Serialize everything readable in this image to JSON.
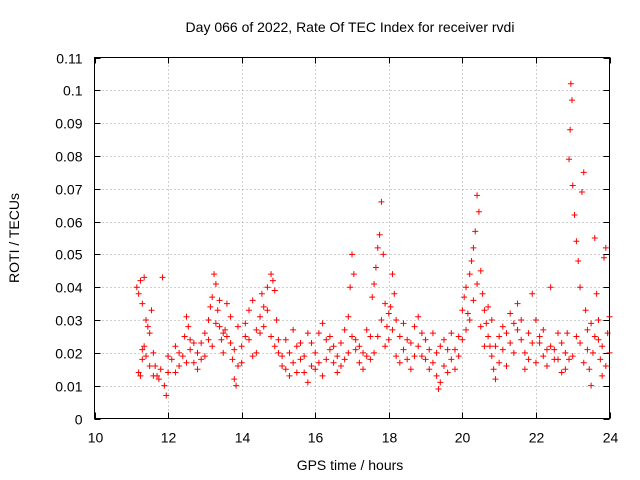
{
  "chart_data": {
    "type": "scatter",
    "title": "Day 066 of 2022, Rate Of TEC Index for receiver rvdi",
    "xlabel": "GPS time / hours",
    "ylabel": "ROTI / TECUs",
    "xlim": [
      10,
      24
    ],
    "ylim": [
      0,
      0.11
    ],
    "xticks": [
      10,
      12,
      14,
      16,
      18,
      20,
      22,
      24
    ],
    "yticks": [
      0,
      0.01,
      0.02,
      0.03,
      0.04,
      0.05,
      0.06,
      0.07,
      0.08,
      0.09,
      0.1,
      0.11
    ],
    "xtick_labels": [
      "10",
      "12",
      "14",
      "16",
      "18",
      "20",
      "22",
      "24"
    ],
    "ytick_labels": [
      "0",
      "0.01",
      "0.02",
      "0.03",
      "0.04",
      "0.05",
      "0.06",
      "0.07",
      "0.08",
      "0.09",
      "0.1",
      "0.11"
    ],
    "grid": true,
    "marker": "+",
    "marker_color": "#ff0000",
    "series": [
      {
        "name": "ROTI",
        "points": [
          [
            11.15,
            0.04
          ],
          [
            11.2,
            0.038
          ],
          [
            11.25,
            0.042
          ],
          [
            11.3,
            0.035
          ],
          [
            11.35,
            0.043
          ],
          [
            11.2,
            0.014
          ],
          [
            11.25,
            0.013
          ],
          [
            11.3,
            0.018
          ],
          [
            11.35,
            0.022
          ],
          [
            11.4,
            0.03
          ],
          [
            11.45,
            0.028
          ],
          [
            11.5,
            0.026
          ],
          [
            11.55,
            0.033
          ],
          [
            11.6,
            0.02
          ],
          [
            11.65,
            0.016
          ],
          [
            11.7,
            0.013
          ],
          [
            11.75,
            0.012
          ],
          [
            11.8,
            0.015
          ],
          [
            11.85,
            0.043
          ],
          [
            11.9,
            0.01
          ],
          [
            11.95,
            0.007
          ],
          [
            12.0,
            0.014
          ],
          [
            12.1,
            0.018
          ],
          [
            12.2,
            0.022
          ],
          [
            12.3,
            0.016
          ],
          [
            12.4,
            0.019
          ],
          [
            12.45,
            0.025
          ],
          [
            12.5,
            0.031
          ],
          [
            12.55,
            0.028
          ],
          [
            12.6,
            0.021
          ],
          [
            12.7,
            0.017
          ],
          [
            12.8,
            0.02
          ],
          [
            12.9,
            0.023
          ],
          [
            13.0,
            0.026
          ],
          [
            13.1,
            0.03
          ],
          [
            13.15,
            0.034
          ],
          [
            13.2,
            0.037
          ],
          [
            13.25,
            0.044
          ],
          [
            13.3,
            0.041
          ],
          [
            13.35,
            0.033
          ],
          [
            13.4,
            0.028
          ],
          [
            13.45,
            0.024
          ],
          [
            13.5,
            0.02
          ],
          [
            13.55,
            0.027
          ],
          [
            13.6,
            0.035
          ],
          [
            13.7,
            0.031
          ],
          [
            13.75,
            0.018
          ],
          [
            13.8,
            0.012
          ],
          [
            13.85,
            0.01
          ],
          [
            13.9,
            0.016
          ],
          [
            14.0,
            0.022
          ],
          [
            14.1,
            0.029
          ],
          [
            14.2,
            0.033
          ],
          [
            14.3,
            0.036
          ],
          [
            14.4,
            0.027
          ],
          [
            14.5,
            0.031
          ],
          [
            14.55,
            0.038
          ],
          [
            14.6,
            0.034
          ],
          [
            14.7,
            0.04
          ],
          [
            14.8,
            0.044
          ],
          [
            14.85,
            0.042
          ],
          [
            14.9,
            0.039
          ],
          [
            14.95,
            0.03
          ],
          [
            15.0,
            0.024
          ],
          [
            15.1,
            0.019
          ],
          [
            15.2,
            0.015
          ],
          [
            15.3,
            0.013
          ],
          [
            15.4,
            0.017
          ],
          [
            15.5,
            0.022
          ],
          [
            15.6,
            0.018
          ],
          [
            15.7,
            0.014
          ],
          [
            15.8,
            0.011
          ],
          [
            15.9,
            0.016
          ],
          [
            16.0,
            0.02
          ],
          [
            16.1,
            0.026
          ],
          [
            16.2,
            0.029
          ],
          [
            16.3,
            0.024
          ],
          [
            16.4,
            0.021
          ],
          [
            16.5,
            0.017
          ],
          [
            16.6,
            0.019
          ],
          [
            16.7,
            0.023
          ],
          [
            16.8,
            0.027
          ],
          [
            16.9,
            0.031
          ],
          [
            16.95,
            0.04
          ],
          [
            17.0,
            0.05
          ],
          [
            17.05,
            0.044
          ],
          [
            17.1,
            0.021
          ],
          [
            17.2,
            0.017
          ],
          [
            17.3,
            0.015
          ],
          [
            17.4,
            0.019
          ],
          [
            17.5,
            0.025
          ],
          [
            17.55,
            0.037
          ],
          [
            17.6,
            0.041
          ],
          [
            17.65,
            0.046
          ],
          [
            17.7,
            0.052
          ],
          [
            17.75,
            0.056
          ],
          [
            17.8,
            0.066
          ],
          [
            17.85,
            0.05
          ],
          [
            17.9,
            0.035
          ],
          [
            17.95,
            0.028
          ],
          [
            18.0,
            0.024
          ],
          [
            18.05,
            0.034
          ],
          [
            18.1,
            0.044
          ],
          [
            18.15,
            0.038
          ],
          [
            18.2,
            0.03
          ],
          [
            18.3,
            0.025
          ],
          [
            18.4,
            0.021
          ],
          [
            18.5,
            0.018
          ],
          [
            18.6,
            0.023
          ],
          [
            18.7,
            0.028
          ],
          [
            18.8,
            0.022
          ],
          [
            18.9,
            0.019
          ],
          [
            19.0,
            0.024
          ],
          [
            19.1,
            0.021
          ],
          [
            19.2,
            0.017
          ],
          [
            19.3,
            0.013
          ],
          [
            19.35,
            0.009
          ],
          [
            19.4,
            0.011
          ],
          [
            19.5,
            0.016
          ],
          [
            19.6,
            0.021
          ],
          [
            19.7,
            0.018
          ],
          [
            19.8,
            0.015
          ],
          [
            19.9,
            0.025
          ],
          [
            20.0,
            0.033
          ],
          [
            20.05,
            0.037
          ],
          [
            20.1,
            0.04
          ],
          [
            20.15,
            0.032
          ],
          [
            20.2,
            0.044
          ],
          [
            20.25,
            0.048
          ],
          [
            20.3,
            0.052
          ],
          [
            20.35,
            0.057
          ],
          [
            20.4,
            0.068
          ],
          [
            20.45,
            0.063
          ],
          [
            20.5,
            0.045
          ],
          [
            20.55,
            0.038
          ],
          [
            20.6,
            0.033
          ],
          [
            20.65,
            0.029
          ],
          [
            20.7,
            0.025
          ],
          [
            20.75,
            0.022
          ],
          [
            20.8,
            0.019
          ],
          [
            20.85,
            0.015
          ],
          [
            20.9,
            0.012
          ],
          [
            21.0,
            0.017
          ],
          [
            21.1,
            0.021
          ],
          [
            21.2,
            0.026
          ],
          [
            21.3,
            0.032
          ],
          [
            21.4,
            0.029
          ],
          [
            21.5,
            0.035
          ],
          [
            21.6,
            0.024
          ],
          [
            21.7,
            0.02
          ],
          [
            21.8,
            0.018
          ],
          [
            21.9,
            0.038
          ],
          [
            22.0,
            0.03
          ],
          [
            22.1,
            0.023
          ],
          [
            22.2,
            0.019
          ],
          [
            22.3,
            0.016
          ],
          [
            22.4,
            0.04
          ],
          [
            22.5,
            0.021
          ],
          [
            22.6,
            0.018
          ],
          [
            22.7,
            0.014
          ],
          [
            22.8,
            0.02
          ],
          [
            22.85,
            0.026
          ],
          [
            22.9,
            0.079
          ],
          [
            22.93,
            0.088
          ],
          [
            22.95,
            0.102
          ],
          [
            22.98,
            0.097
          ],
          [
            23.0,
            0.071
          ],
          [
            23.05,
            0.062
          ],
          [
            23.1,
            0.054
          ],
          [
            23.15,
            0.048
          ],
          [
            23.2,
            0.04
          ],
          [
            23.25,
            0.069
          ],
          [
            23.3,
            0.075
          ],
          [
            23.35,
            0.033
          ],
          [
            23.4,
            0.027
          ],
          [
            23.45,
            0.015
          ],
          [
            23.5,
            0.01
          ],
          [
            23.55,
            0.02
          ],
          [
            23.6,
            0.055
          ],
          [
            23.65,
            0.038
          ],
          [
            23.7,
            0.03
          ],
          [
            23.75,
            0.018
          ],
          [
            23.8,
            0.013
          ],
          [
            23.85,
            0.049
          ],
          [
            23.9,
            0.052
          ],
          [
            23.95,
            0.026
          ],
          [
            24.0,
            0.02
          ],
          [
            11.3,
            0.021
          ],
          [
            11.4,
            0.019
          ],
          [
            11.5,
            0.016
          ],
          [
            11.6,
            0.013
          ],
          [
            12.0,
            0.019
          ],
          [
            12.2,
            0.014
          ],
          [
            12.6,
            0.024
          ],
          [
            12.8,
            0.015
          ],
          [
            13.0,
            0.019
          ],
          [
            13.2,
            0.022
          ],
          [
            13.4,
            0.036
          ],
          [
            13.6,
            0.025
          ],
          [
            13.8,
            0.021
          ],
          [
            14.0,
            0.017
          ],
          [
            14.2,
            0.024
          ],
          [
            14.4,
            0.02
          ],
          [
            14.6,
            0.028
          ],
          [
            14.8,
            0.025
          ],
          [
            15.0,
            0.02
          ],
          [
            15.2,
            0.024
          ],
          [
            15.4,
            0.027
          ],
          [
            15.6,
            0.023
          ],
          [
            15.8,
            0.026
          ],
          [
            16.0,
            0.015
          ],
          [
            16.2,
            0.013
          ],
          [
            16.4,
            0.025
          ],
          [
            16.6,
            0.014
          ],
          [
            16.8,
            0.018
          ],
          [
            17.0,
            0.025
          ],
          [
            17.2,
            0.022
          ],
          [
            17.4,
            0.027
          ],
          [
            17.6,
            0.02
          ],
          [
            17.8,
            0.03
          ],
          [
            18.0,
            0.032
          ],
          [
            18.2,
            0.019
          ],
          [
            18.4,
            0.029
          ],
          [
            18.6,
            0.015
          ],
          [
            18.8,
            0.031
          ],
          [
            19.0,
            0.018
          ],
          [
            19.2,
            0.026
          ],
          [
            19.4,
            0.022
          ],
          [
            19.6,
            0.014
          ],
          [
            19.8,
            0.021
          ],
          [
            20.0,
            0.024
          ],
          [
            20.2,
            0.03
          ],
          [
            20.4,
            0.041
          ],
          [
            20.6,
            0.022
          ],
          [
            20.8,
            0.03
          ],
          [
            21.0,
            0.025
          ],
          [
            21.2,
            0.016
          ],
          [
            21.4,
            0.02
          ],
          [
            21.6,
            0.03
          ],
          [
            21.8,
            0.026
          ],
          [
            22.0,
            0.017
          ],
          [
            22.2,
            0.027
          ],
          [
            22.4,
            0.022
          ],
          [
            22.6,
            0.026
          ],
          [
            22.8,
            0.015
          ],
          [
            23.0,
            0.019
          ],
          [
            23.2,
            0.023
          ],
          [
            23.4,
            0.021
          ],
          [
            23.6,
            0.025
          ],
          [
            23.8,
            0.022
          ],
          [
            24.0,
            0.031
          ],
          [
            12.3,
            0.02
          ],
          [
            12.5,
            0.017
          ],
          [
            12.7,
            0.023
          ],
          [
            12.9,
            0.018
          ],
          [
            13.1,
            0.024
          ],
          [
            13.3,
            0.029
          ],
          [
            13.5,
            0.026
          ],
          [
            13.7,
            0.023
          ],
          [
            13.9,
            0.028
          ],
          [
            14.1,
            0.025
          ],
          [
            14.3,
            0.019
          ],
          [
            14.5,
            0.026
          ],
          [
            14.7,
            0.033
          ],
          [
            14.9,
            0.022
          ],
          [
            15.1,
            0.016
          ],
          [
            15.3,
            0.02
          ],
          [
            15.5,
            0.014
          ],
          [
            15.7,
            0.019
          ],
          [
            15.9,
            0.023
          ],
          [
            16.1,
            0.017
          ],
          [
            16.3,
            0.018
          ],
          [
            16.5,
            0.022
          ],
          [
            16.7,
            0.016
          ],
          [
            16.9,
            0.02
          ],
          [
            17.1,
            0.024
          ],
          [
            17.3,
            0.02
          ],
          [
            17.5,
            0.018
          ],
          [
            17.7,
            0.025
          ],
          [
            17.9,
            0.022
          ],
          [
            18.1,
            0.027
          ],
          [
            18.3,
            0.017
          ],
          [
            18.5,
            0.024
          ],
          [
            18.7,
            0.019
          ],
          [
            18.9,
            0.026
          ],
          [
            19.1,
            0.015
          ],
          [
            19.3,
            0.02
          ],
          [
            19.5,
            0.024
          ],
          [
            19.7,
            0.026
          ],
          [
            19.9,
            0.019
          ],
          [
            20.1,
            0.027
          ],
          [
            20.3,
            0.036
          ],
          [
            20.5,
            0.028
          ],
          [
            20.7,
            0.034
          ],
          [
            20.9,
            0.022
          ],
          [
            21.1,
            0.028
          ],
          [
            21.3,
            0.023
          ],
          [
            21.5,
            0.027
          ],
          [
            21.7,
            0.015
          ],
          [
            21.9,
            0.023
          ],
          [
            22.1,
            0.025
          ],
          [
            22.3,
            0.021
          ],
          [
            22.5,
            0.018
          ],
          [
            22.7,
            0.023
          ],
          [
            22.9,
            0.018
          ],
          [
            23.1,
            0.025
          ],
          [
            23.3,
            0.017
          ],
          [
            23.5,
            0.029
          ],
          [
            23.7,
            0.024
          ],
          [
            23.9,
            0.016
          ]
        ]
      }
    ]
  }
}
